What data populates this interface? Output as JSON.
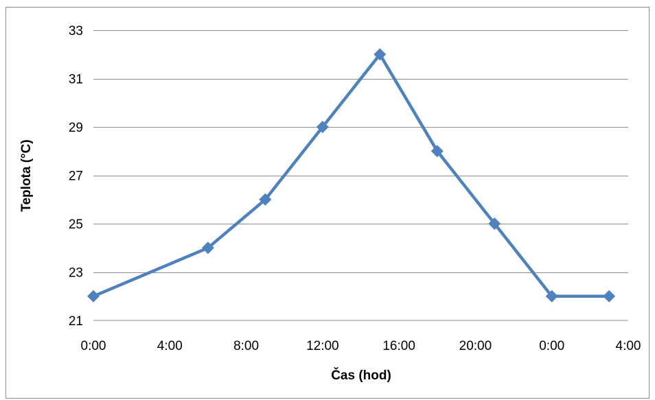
{
  "chart_data": {
    "type": "line",
    "xlabel": "Čas (hod)",
    "ylabel": "Teplota (°C)",
    "x_tick_labels": [
      "0:00",
      "4:00",
      "8:00",
      "12:00",
      "16:00",
      "20:00",
      "0:00",
      "4:00"
    ],
    "x_unit": "hours since first midnight",
    "xlim": [
      0,
      28
    ],
    "x_tick_step": 4,
    "y_ticks": [
      21,
      23,
      25,
      27,
      29,
      31,
      33
    ],
    "ylim": [
      21,
      33
    ],
    "grid": true,
    "legend": "none",
    "series": [
      {
        "color": "#4f81bd",
        "marker": "diamond",
        "x": [
          0,
          6,
          9,
          12,
          15,
          18,
          21,
          24,
          27
        ],
        "values": [
          22,
          24,
          26,
          29,
          32,
          28,
          25,
          22,
          22
        ]
      }
    ]
  }
}
